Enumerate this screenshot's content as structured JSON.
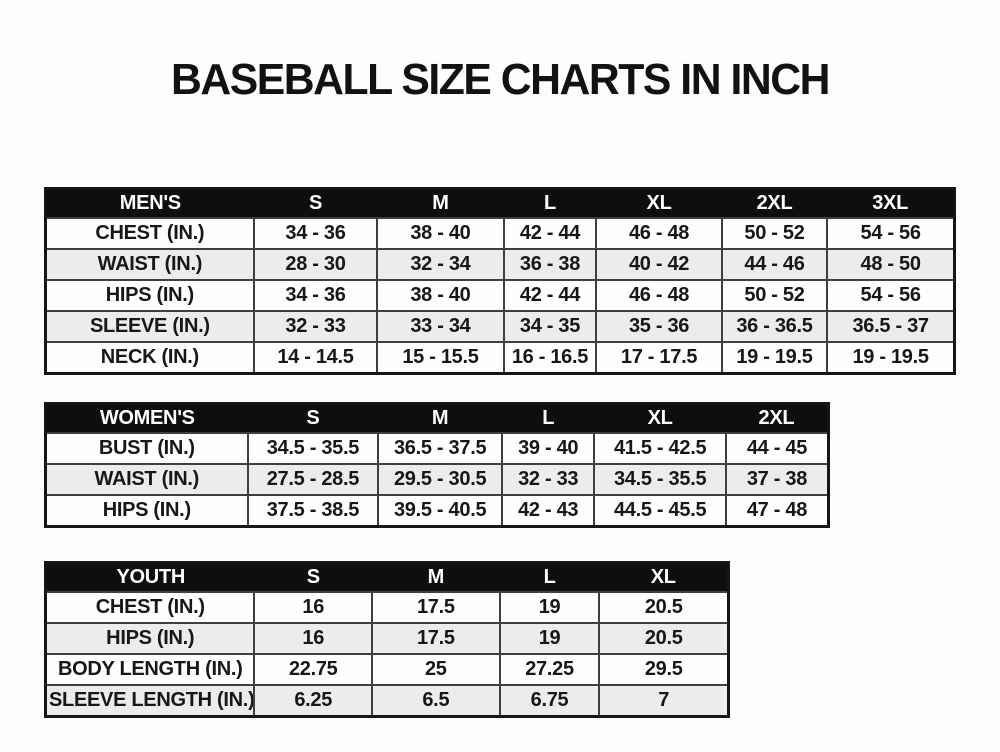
{
  "page": {
    "title": "BASEBALL SIZE CHARTS IN INCH"
  },
  "colors": {
    "header_bg": "#0e0e0e",
    "header_text": "#ffffff",
    "row_bg": "#fefefe",
    "row_alt_bg": "#ececec",
    "border": "#3f3f3f",
    "outer_border": "#161616",
    "text": "#171717",
    "page_bg": "#fdfdfd"
  },
  "tables": [
    {
      "name": "mens",
      "header": [
        "MEN'S",
        "S",
        "M",
        "L",
        "XL",
        "2XL",
        "3XL"
      ],
      "rows": [
        [
          "CHEST (IN.)",
          "34 - 36",
          "38 - 40",
          "42 - 44",
          "46 - 48",
          "50 - 52",
          "54 - 56"
        ],
        [
          "WAIST (IN.)",
          "28 - 30",
          "32 - 34",
          "36 - 38",
          "40 - 42",
          "44 - 46",
          "48 - 50"
        ],
        [
          "HIPS (IN.)",
          "34 - 36",
          "38 - 40",
          "42 - 44",
          "46 - 48",
          "50 - 52",
          "54 - 56"
        ],
        [
          "SLEEVE (IN.)",
          "32 - 33",
          "33 - 34",
          "34 - 35",
          "35 - 36",
          "36 - 36.5",
          "36.5 - 37"
        ],
        [
          "NECK (IN.)",
          "14 - 14.5",
          "15 - 15.5",
          "16 - 16.5",
          "17 - 17.5",
          "19 - 19.5",
          "19 - 19.5"
        ]
      ]
    },
    {
      "name": "womens",
      "header": [
        "WOMEN'S",
        "S",
        "M",
        "L",
        "XL",
        "2XL"
      ],
      "rows": [
        [
          "BUST (IN.)",
          "34.5 - 35.5",
          "36.5 - 37.5",
          "39 - 40",
          "41.5 - 42.5",
          "44 - 45"
        ],
        [
          "WAIST (IN.)",
          "27.5 - 28.5",
          "29.5 - 30.5",
          "32 - 33",
          "34.5 - 35.5",
          "37 - 38"
        ],
        [
          "HIPS (IN.)",
          "37.5 - 38.5",
          "39.5 - 40.5",
          "42 - 43",
          "44.5 - 45.5",
          "47 - 48"
        ]
      ]
    },
    {
      "name": "youth",
      "header": [
        "YOUTH",
        "S",
        "M",
        "L",
        "XL"
      ],
      "rows": [
        [
          "CHEST (IN.)",
          "16",
          "17.5",
          "19",
          "20.5"
        ],
        [
          "HIPS (IN.)",
          "16",
          "17.5",
          "19",
          "20.5"
        ],
        [
          "BODY LENGTH (IN.)",
          "22.75",
          "25",
          "27.25",
          "29.5"
        ],
        [
          "SLEEVE LENGTH (IN.)",
          "6.25",
          "6.5",
          "6.75",
          "7"
        ]
      ]
    }
  ]
}
